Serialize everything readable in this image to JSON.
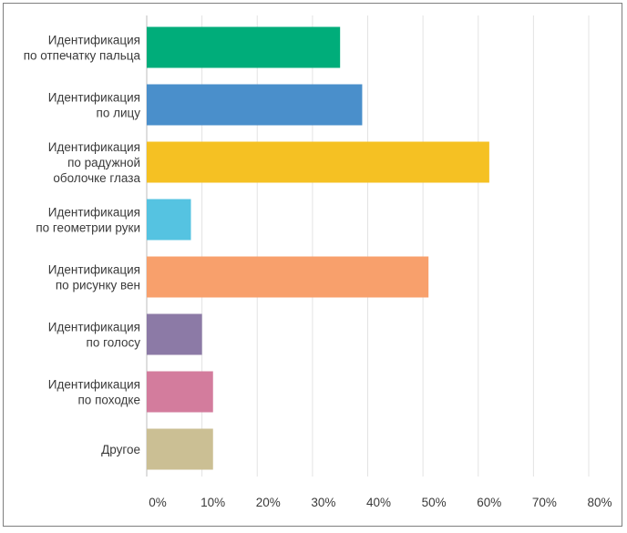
{
  "chart_data": {
    "type": "bar",
    "orientation": "horizontal",
    "title": "",
    "xlabel": "",
    "ylabel": "",
    "xlim": [
      0,
      80
    ],
    "grid": true,
    "categories": [
      [
        "Идентификация",
        "по отпечатку пальца"
      ],
      [
        "Идентификация",
        "по лицу"
      ],
      [
        "Идентификация",
        "по радужной",
        "оболочке глаза"
      ],
      [
        "Идентификация",
        "по геометрии руки"
      ],
      [
        "Идентификация",
        "по рисунку вен"
      ],
      [
        "Идентификация",
        "по голосу"
      ],
      [
        "Идентификация",
        "по походке"
      ],
      [
        "Другое"
      ]
    ],
    "values": [
      35,
      39,
      62,
      8,
      51,
      10,
      12,
      12
    ],
    "colors": [
      "#00ad7a",
      "#4a8fcb",
      "#f5c123",
      "#55c3e1",
      "#f8a06c",
      "#8c7aa6",
      "#d37c9d",
      "#cbbf94"
    ],
    "ticks": [
      0,
      10,
      20,
      30,
      40,
      50,
      60,
      70,
      80
    ],
    "tick_labels": [
      "0%",
      "10%",
      "20%",
      "30%",
      "40%",
      "50%",
      "60%",
      "70%",
      "80%"
    ]
  }
}
